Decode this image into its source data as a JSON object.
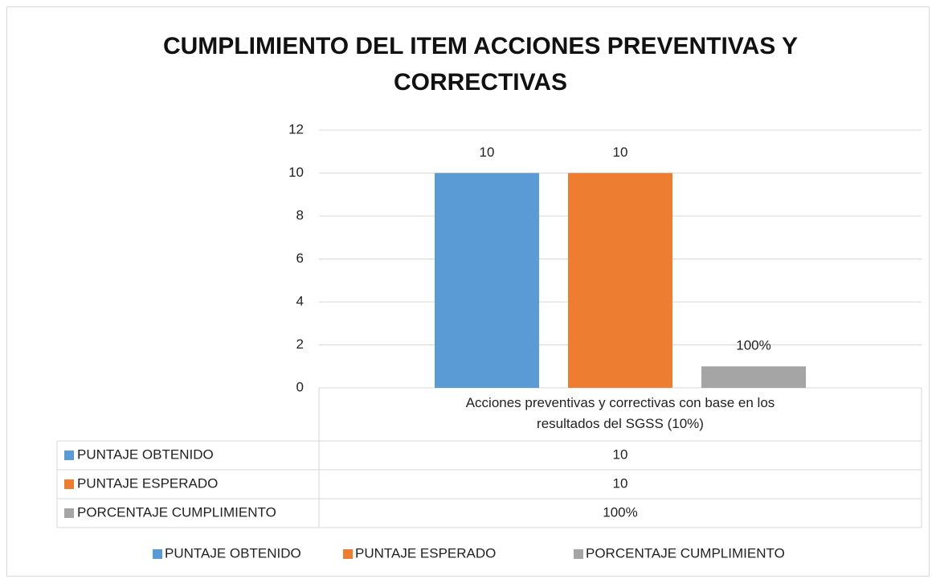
{
  "chart_data": {
    "type": "bar",
    "title": "CUMPLIMIENTO DEL ITEM ACCIONES PREVENTIVAS Y CORRECTIVAS",
    "categories": [
      "Acciones preventivas y correctivas con base en los resultados del SGSS (10%)"
    ],
    "series": [
      {
        "name": "PUNTAJE OBTENIDO",
        "color": "#5b9bd5",
        "values": [
          10
        ]
      },
      {
        "name": "PUNTAJE ESPERADO",
        "color": "#ed7d31",
        "values": [
          10
        ]
      },
      {
        "name": "PORCENTAJE CUMPLIMIENTO",
        "color": "#a5a5a5",
        "values": [
          1
        ],
        "value_labels": [
          "100%"
        ]
      }
    ],
    "ylim": [
      0,
      12
    ],
    "yticks": [
      0,
      2,
      4,
      6,
      8,
      10,
      12
    ],
    "grid": true,
    "legend": "bottom"
  }
}
